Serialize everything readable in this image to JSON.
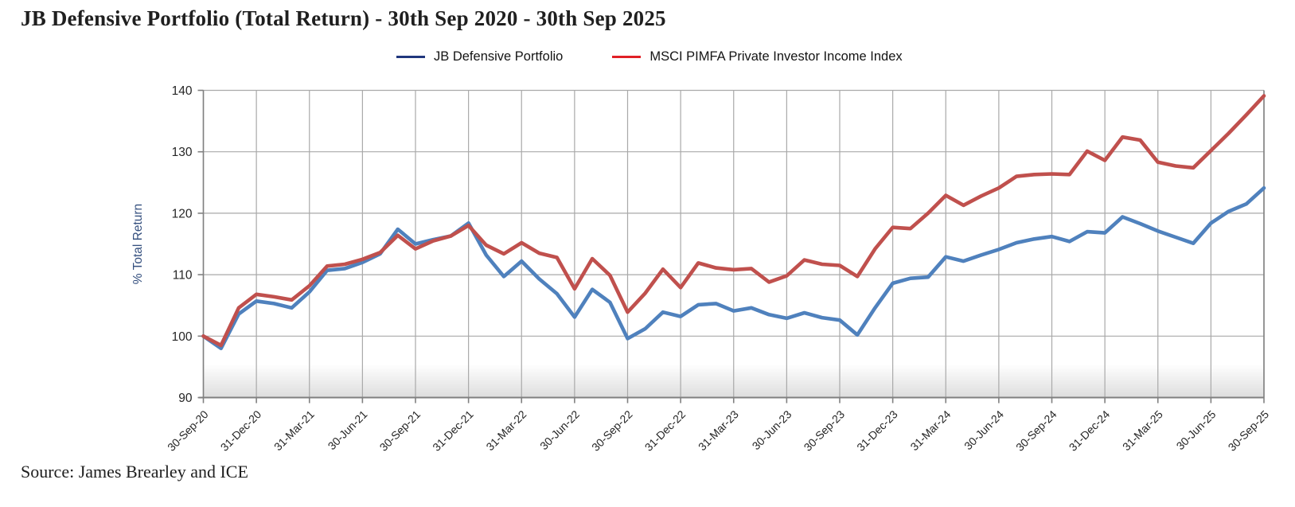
{
  "title": "JB Defensive Portfolio (Total Return) - 30th Sep 2020 - 30th Sep 2025",
  "source": "Source: James Brearley and ICE",
  "legend": [
    {
      "label": "JB Defensive Portfolio",
      "swatch_color": "#20377d"
    },
    {
      "label": "MSCI PIMFA Private Investor Income Index",
      "swatch_color": "#e02026"
    }
  ],
  "colors": {
    "jb_line": "#4f81bd",
    "msci_line": "#c0504d",
    "gridline": "#a9a9a9",
    "axis": "#808080",
    "tick_text": "#262626",
    "ylabel_text": "#35507f"
  },
  "chart_data": {
    "type": "line",
    "title": "JB Defensive Portfolio (Total Return) - 30th Sep 2020 - 30th Sep 2025",
    "xlabel": "",
    "ylabel": "% Total Return",
    "ylim": [
      90,
      140
    ],
    "y_ticks": [
      90,
      100,
      110,
      120,
      130,
      140
    ],
    "x_description": "monthly observations, 30-Sep-2020 to 30-Sep-2025 (61 points), quarterly tick labels",
    "x_tick_labels": [
      "30-Sep-20",
      "31-Dec-20",
      "31-Mar-21",
      "30-Jun-21",
      "30-Sep-21",
      "31-Dec-21",
      "31-Mar-22",
      "30-Jun-22",
      "30-Sep-22",
      "31-Dec-22",
      "31-Mar-23",
      "30-Jun-23",
      "30-Sep-23",
      "31-Dec-23",
      "31-Mar-24",
      "30-Jun-24",
      "30-Sep-24",
      "31-Dec-24",
      "31-Mar-25",
      "30-Jun-25",
      "30-Sep-25"
    ],
    "x_tick_month_indices": [
      0,
      3,
      6,
      9,
      12,
      15,
      18,
      21,
      24,
      27,
      30,
      33,
      36,
      39,
      42,
      45,
      48,
      51,
      54,
      57,
      60
    ],
    "grid": true,
    "legend_position": "top",
    "series": [
      {
        "name": "JB Defensive Portfolio",
        "color": "#4f81bd",
        "values": [
          100.0,
          98.0,
          103.6,
          105.7,
          105.3,
          104.6,
          107.2,
          110.7,
          111.0,
          112.0,
          113.4,
          117.4,
          115.0,
          115.7,
          116.3,
          118.4,
          113.2,
          109.7,
          112.2,
          109.3,
          106.9,
          103.1,
          107.6,
          105.5,
          99.6,
          101.2,
          103.9,
          103.2,
          105.1,
          105.3,
          104.1,
          104.6,
          103.5,
          102.9,
          103.8,
          103.0,
          102.6,
          100.2,
          104.6,
          108.6,
          109.4,
          109.6,
          112.9,
          112.2,
          113.2,
          114.1,
          115.2,
          115.8,
          116.2,
          115.4,
          117.0,
          116.8,
          119.4,
          118.3,
          117.1,
          116.1,
          115.1,
          118.4,
          120.3,
          121.5,
          124.1
        ]
      },
      {
        "name": "MSCI PIMFA Private Investor Income Index",
        "color": "#c0504d",
        "values": [
          100.0,
          98.5,
          104.6,
          106.8,
          106.4,
          105.9,
          108.2,
          111.4,
          111.7,
          112.5,
          113.6,
          116.4,
          114.2,
          115.5,
          116.3,
          118.0,
          114.8,
          113.4,
          115.2,
          113.5,
          112.8,
          107.7,
          112.6,
          109.9,
          103.9,
          107.0,
          110.9,
          107.9,
          111.9,
          111.1,
          110.8,
          111.0,
          108.8,
          109.8,
          112.4,
          111.7,
          111.5,
          109.7,
          114.2,
          117.7,
          117.5,
          120.0,
          122.9,
          121.3,
          122.8,
          124.1,
          126.0,
          126.3,
          126.4,
          126.3,
          130.1,
          128.6,
          132.4,
          131.9,
          128.3,
          127.7,
          127.4,
          130.2,
          133.0,
          136.0,
          139.1
        ]
      }
    ]
  }
}
